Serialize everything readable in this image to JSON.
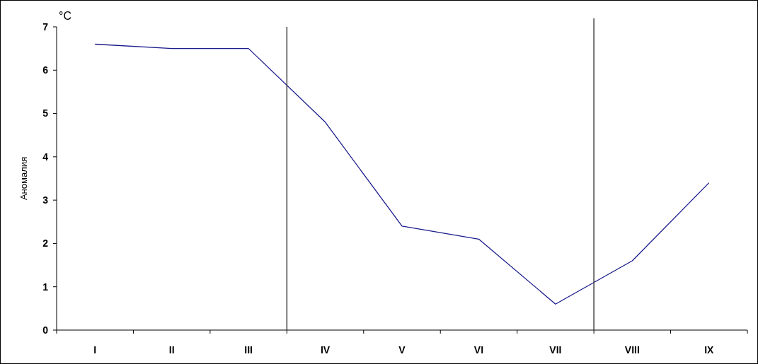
{
  "chart_data": {
    "type": "line",
    "ylabel": "Аномалия",
    "annotations": [
      "°C"
    ],
    "categories": [
      "I",
      "II",
      "III",
      "IV",
      "V",
      "VI",
      "VII",
      "VIII",
      "IX"
    ],
    "series": [
      {
        "color": "#1a1a8c",
        "values": [
          6.6,
          6.5,
          6.5,
          4.8,
          2.4,
          2.1,
          0.6,
          1.6,
          3.4
        ]
      }
    ],
    "ylim": [
      0,
      7
    ],
    "yticks": [
      0,
      1,
      2,
      3,
      4,
      5,
      6,
      7
    ],
    "grid": false,
    "marker": "none",
    "line_style": "solid"
  }
}
